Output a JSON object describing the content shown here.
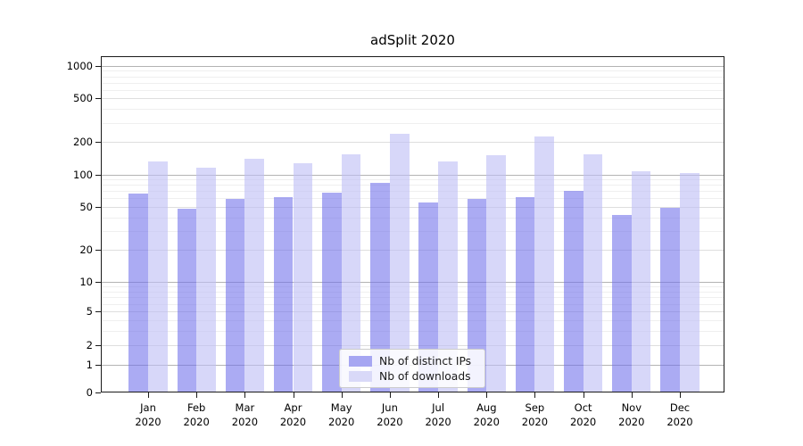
{
  "title": "adSplit 2020",
  "chart_data": {
    "type": "bar",
    "title": "adSplit 2020",
    "categories": [
      "Jan",
      "Feb",
      "Mar",
      "Apr",
      "May",
      "Jun",
      "Jul",
      "Aug",
      "Sep",
      "Oct",
      "Nov",
      "Dec"
    ],
    "category_year": "2020",
    "series": [
      {
        "name": "Nb of distinct IPs",
        "color": "rgba(110,110,235,0.58)",
        "legend_color": "#a6a6f2",
        "values": [
          66,
          48,
          59,
          62,
          68,
          83,
          55,
          59,
          62,
          71,
          42,
          49
        ]
      },
      {
        "name": "Nb of downloads",
        "color": "rgba(190,190,246,0.62)",
        "legend_color": "#d9d9f8",
        "values": [
          133,
          115,
          141,
          128,
          153,
          237,
          133,
          151,
          225,
          153,
          108,
          103
        ]
      }
    ],
    "yscale": "symlog",
    "ylim": [
      0,
      1100
    ],
    "yticks": [
      0,
      1,
      2,
      5,
      10,
      20,
      50,
      100,
      200,
      500,
      1000
    ],
    "grid": true,
    "legend_position": "lower-center",
    "background_color": "#ffffff",
    "spine_color": "#1a1a1a"
  }
}
